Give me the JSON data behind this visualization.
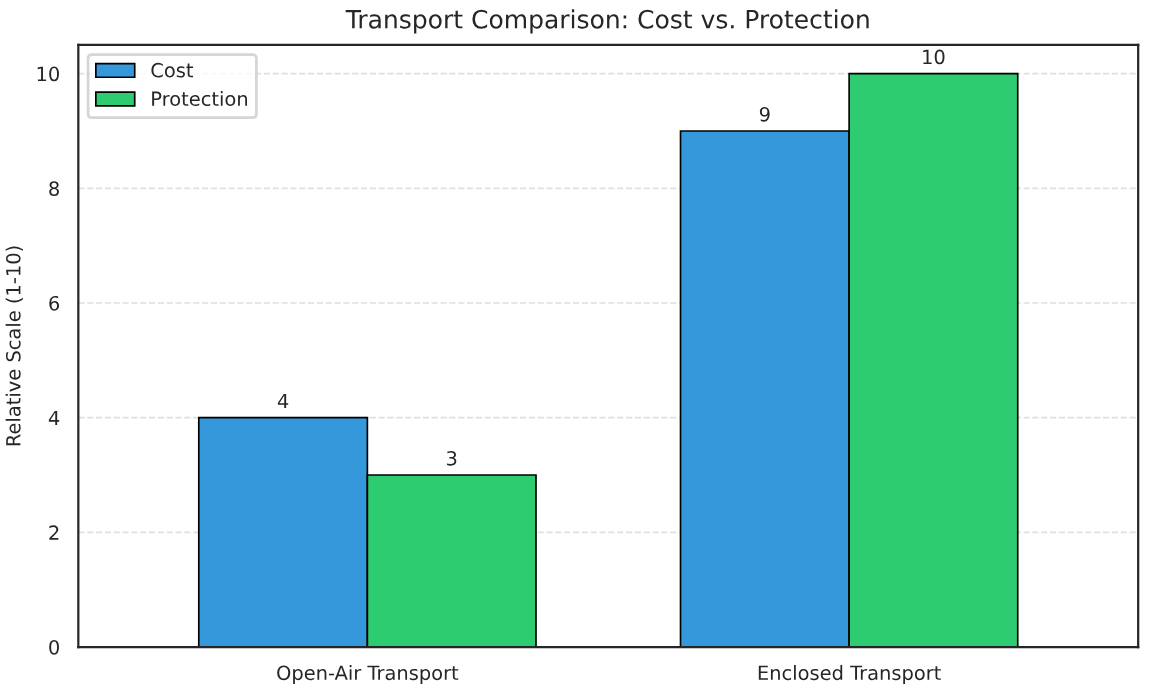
{
  "chart_data": {
    "type": "bar",
    "title": "Transport Comparison: Cost vs. Protection",
    "ylabel": "Relative Scale (1-10)",
    "categories": [
      "Open-Air Transport",
      "Enclosed Transport"
    ],
    "series": [
      {
        "name": "Cost",
        "color": "#3498db",
        "values": [
          4,
          9
        ]
      },
      {
        "name": "Protection",
        "color": "#2ecc71",
        "values": [
          3,
          10
        ]
      }
    ],
    "ylim": [
      0,
      10.5
    ],
    "yticks": [
      0,
      2,
      4,
      6,
      8,
      10
    ],
    "grid": "y",
    "legend": "top left",
    "data_labels": true
  }
}
